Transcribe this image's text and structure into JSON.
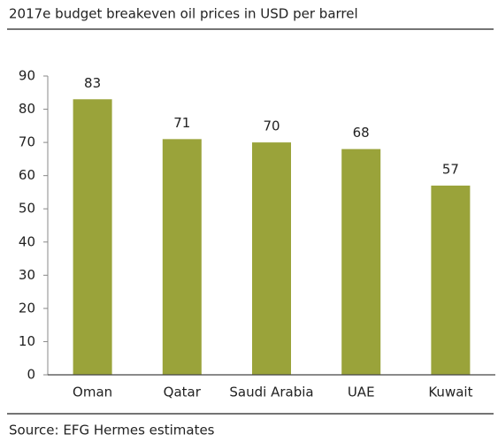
{
  "chart_data": {
    "type": "bar",
    "title": "2017e budget breakeven oil prices in USD per barrel",
    "categories": [
      "Oman",
      "Qatar",
      "Saudi Arabia",
      "UAE",
      "Kuwait"
    ],
    "values": [
      83,
      71,
      70,
      68,
      57
    ],
    "color": "#9aa33a",
    "ylim": [
      0,
      90
    ],
    "yticks": [
      0,
      10,
      20,
      30,
      40,
      50,
      60,
      70,
      80,
      90
    ],
    "grid": false,
    "source": "Source: EFG Hermes estimates"
  }
}
